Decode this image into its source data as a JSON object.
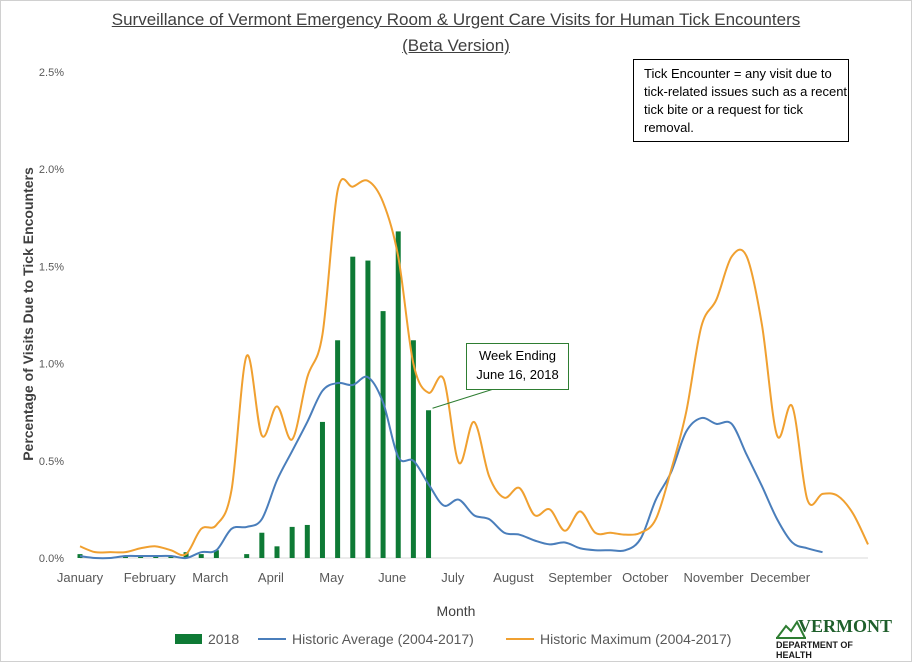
{
  "chart_data": {
    "type": "bar+line",
    "title": "Surveillance of Vermont Emergency Room & Urgent Care Visits for Human Tick Encounters",
    "subtitle": "(Beta Version)",
    "xlabel": "Month",
    "ylabel": "Percentage of Visits Due to Tick Encounters",
    "x_unit": "week of year",
    "xlim": [
      1,
      53
    ],
    "ylim": [
      0,
      2.5
    ],
    "yticks": [
      "0.0%",
      "0.5%",
      "1.0%",
      "1.5%",
      "2.0%",
      "2.5%"
    ],
    "month_labels": [
      "January",
      "February",
      "March",
      "April",
      "May",
      "June",
      "July",
      "August",
      "September",
      "October",
      "November",
      "December"
    ],
    "month_label_weeks": [
      1,
      5.6,
      9.6,
      13.6,
      17.6,
      21.6,
      25.6,
      29.6,
      34,
      38.3,
      42.8,
      47.2
    ],
    "series": [
      {
        "name": "2018",
        "type": "bar",
        "color": "#0e7a35",
        "x": [
          1,
          2,
          3,
          4,
          5,
          6,
          7,
          8,
          9,
          10,
          11,
          12,
          13,
          14,
          15,
          16,
          17,
          18,
          19,
          20,
          21,
          22,
          23,
          24
        ],
        "values": [
          0.02,
          0.0,
          0.0,
          0.01,
          0.01,
          0.01,
          0.01,
          0.03,
          0.02,
          0.04,
          0.0,
          0.02,
          0.13,
          0.06,
          0.16,
          0.17,
          0.7,
          1.12,
          1.55,
          1.53,
          1.27,
          1.68,
          1.12,
          0.76
        ]
      },
      {
        "name": "Historic Average (2004-2017)",
        "type": "line",
        "color": "#4a7ebb",
        "x": [
          1,
          2,
          3,
          4,
          5,
          6,
          7,
          8,
          9,
          10,
          11,
          12,
          13,
          14,
          15,
          16,
          17,
          18,
          19,
          20,
          21,
          22,
          23,
          24,
          25,
          26,
          27,
          28,
          29,
          30,
          31,
          32,
          33,
          34,
          35,
          36,
          37,
          38,
          39,
          40,
          41,
          42,
          43,
          44,
          45,
          46,
          47,
          48,
          49,
          50
        ],
        "values": [
          0.01,
          0.0,
          0.0,
          0.01,
          0.01,
          0.01,
          0.01,
          0.0,
          0.03,
          0.04,
          0.15,
          0.16,
          0.2,
          0.4,
          0.55,
          0.7,
          0.86,
          0.9,
          0.89,
          0.93,
          0.8,
          0.52,
          0.5,
          0.38,
          0.27,
          0.3,
          0.22,
          0.2,
          0.13,
          0.12,
          0.09,
          0.07,
          0.08,
          0.05,
          0.04,
          0.04,
          0.04,
          0.1,
          0.3,
          0.44,
          0.65,
          0.72,
          0.69,
          0.69,
          0.53,
          0.37,
          0.2,
          0.08,
          0.05,
          0.03
        ]
      },
      {
        "name": "Historic Maximum (2004-2017)",
        "type": "line",
        "color": "#f0a030",
        "x": [
          1,
          2,
          3,
          4,
          5,
          6,
          7,
          8,
          9,
          10,
          11,
          12,
          13,
          14,
          15,
          16,
          17,
          18,
          19,
          20,
          21,
          22,
          23,
          24,
          25,
          26,
          27,
          28,
          29,
          30,
          31,
          32,
          33,
          34,
          35,
          36,
          37,
          38,
          39,
          40,
          41,
          42,
          43,
          44,
          45,
          46,
          47,
          48,
          49,
          50,
          51,
          52,
          53
        ],
        "values": [
          0.06,
          0.03,
          0.03,
          0.03,
          0.05,
          0.06,
          0.04,
          0.02,
          0.15,
          0.17,
          0.35,
          1.04,
          0.63,
          0.78,
          0.61,
          0.93,
          1.15,
          1.89,
          1.91,
          1.94,
          1.83,
          1.55,
          1.0,
          0.85,
          0.92,
          0.49,
          0.7,
          0.42,
          0.31,
          0.36,
          0.22,
          0.25,
          0.14,
          0.24,
          0.13,
          0.13,
          0.12,
          0.13,
          0.2,
          0.45,
          0.75,
          1.19,
          1.33,
          1.55,
          1.55,
          1.2,
          0.63,
          0.78,
          0.3,
          0.33,
          0.32,
          0.23,
          0.07
        ]
      }
    ],
    "legend_position": "bottom",
    "grid": false,
    "annotations": [
      {
        "text": "Tick Encounter = any visit due to tick-related issues such as a recent tick bite or a request for tick removal.",
        "position": "top-right"
      },
      {
        "text": "Week Ending June 16, 2018",
        "points_to_week": 24
      }
    ]
  },
  "callout": {
    "line1": "Week Ending",
    "line2": "June 16, 2018"
  },
  "note": {
    "text": "Tick Encounter = any visit due to tick-related issues such as a recent tick bite or a request for tick removal."
  },
  "logo": {
    "name": "VERMONT",
    "dept": "DEPARTMENT OF HEALTH"
  }
}
